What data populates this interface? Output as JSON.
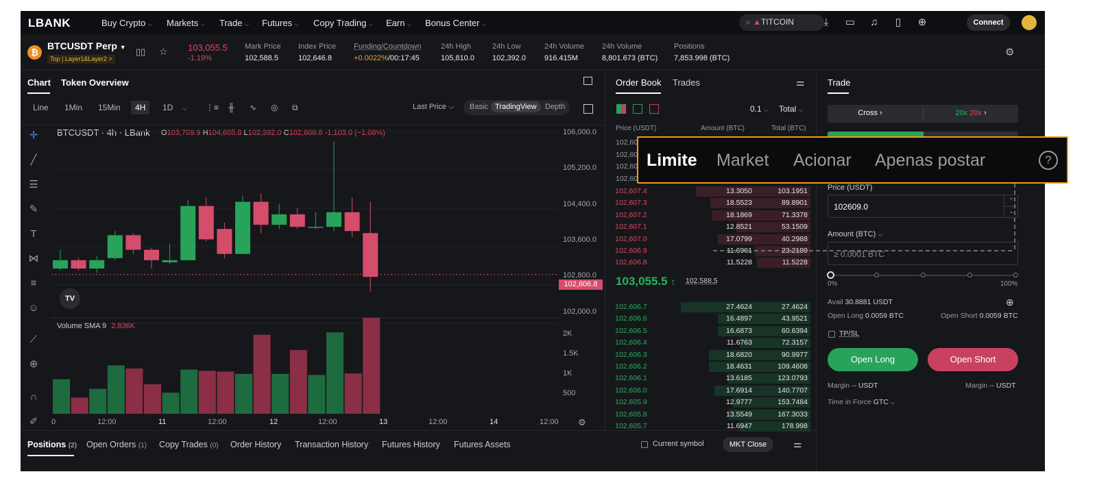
{
  "header": {
    "logo": "LBANK",
    "nav": [
      {
        "label": "Buy Crypto"
      },
      {
        "label": "Markets"
      },
      {
        "label": "Trade"
      },
      {
        "label": "Futures"
      },
      {
        "label": "Copy Trading"
      },
      {
        "label": "Earn"
      },
      {
        "label": "Bonus Center"
      }
    ],
    "search_value": "TITCOIN",
    "connect_label": "Connect"
  },
  "ticker": {
    "symbol": "BTCUSDT Perp",
    "tag": "Top | Layer1&Layer2 >",
    "last_price": "103,055.5",
    "change": "-1.19%",
    "stats": [
      {
        "label": "Mark Price",
        "value": "102,588.5"
      },
      {
        "label": "Index Price",
        "value": "102,646.8"
      },
      {
        "label": "Funding/Countdown",
        "value": "+0.0022%",
        "value2": "/00:17:45"
      },
      {
        "label": "24h High",
        "value": "105,810.0"
      },
      {
        "label": "24h Low",
        "value": "102,392.0"
      },
      {
        "label": "24h Volume",
        "value": "916.415M"
      },
      {
        "label": "24h Volume",
        "value": "8,801.673 (BTC)"
      },
      {
        "label": "Positions",
        "value": "7,853.998 (BTC)"
      }
    ]
  },
  "chart": {
    "tabs": [
      "Chart",
      "Token Overview"
    ],
    "timeframes": [
      "Line",
      "1Min",
      "15Min",
      "4H",
      "1D"
    ],
    "selected_tf": "4H",
    "last_price_label": "Last Price",
    "modes": [
      "Basic",
      "TradingView",
      "Depth"
    ],
    "selected_mode": "TradingView",
    "legend": {
      "title": "BTCUSDT · 4h · LBank",
      "o_label": "O",
      "o": "103,709.9",
      "h_label": "H",
      "h": "104,605.8",
      "l_label": "L",
      "l": "102,392.0",
      "c_label": "C",
      "c": "102,606.8",
      "chg": "-1,103.0 (−1.06%)"
    },
    "y_ticks": [
      "106,000.0",
      "105,200.0",
      "104,400.0",
      "103,600.0",
      "102,800.0",
      "102,000.0"
    ],
    "price_tag": "102,606.8",
    "volume_label": "Volume SMA 9",
    "volume_value": "2.836K",
    "vol_ticks": [
      "2K",
      "1.5K",
      "1K",
      "500"
    ],
    "x_ticks": [
      "0",
      "12:00",
      "11",
      "12:00",
      "12",
      "12:00",
      "13",
      "12:00",
      "14",
      "12:00"
    ],
    "tv_badge": "TV"
  },
  "chart_data": {
    "type": "candlestick",
    "y_range": [
      101600,
      106200
    ],
    "vol_range": [
      0,
      2500
    ],
    "candles": [
      {
        "o": 102750,
        "c": 102950,
        "h": 103200,
        "l": 102700
      },
      {
        "o": 102950,
        "c": 102750,
        "h": 103000,
        "l": 102700
      },
      {
        "o": 102750,
        "c": 102950,
        "h": 103050,
        "l": 102650
      },
      {
        "o": 103000,
        "c": 103550,
        "h": 103650,
        "l": 102950
      },
      {
        "o": 103550,
        "c": 103200,
        "h": 103600,
        "l": 103100
      },
      {
        "o": 103200,
        "c": 102950,
        "h": 103250,
        "l": 102750
      },
      {
        "o": 102900,
        "c": 102950,
        "h": 103350,
        "l": 102850
      },
      {
        "o": 102950,
        "c": 104250,
        "h": 104400,
        "l": 102950
      },
      {
        "o": 104250,
        "c": 103450,
        "h": 104450,
        "l": 103400
      },
      {
        "o": 103700,
        "c": 103100,
        "h": 103850,
        "l": 103000
      },
      {
        "o": 103100,
        "c": 104350,
        "h": 104500,
        "l": 103100
      },
      {
        "o": 104350,
        "c": 103800,
        "h": 104550,
        "l": 103600
      },
      {
        "o": 103800,
        "c": 104050,
        "h": 104300,
        "l": 103700
      },
      {
        "o": 104050,
        "c": 103750,
        "h": 104200,
        "l": 103700
      },
      {
        "o": 103750,
        "c": 103750,
        "h": 104100,
        "l": 103700
      },
      {
        "o": 103750,
        "c": 104100,
        "h": 105800,
        "l": 103650
      },
      {
        "o": 104100,
        "c": 103650,
        "h": 104450,
        "l": 103500
      },
      {
        "o": 103600,
        "c": 102550,
        "h": 104350,
        "l": 102200
      }
    ],
    "volumes": [
      900,
      420,
      650,
      1260,
      1180,
      770,
      550,
      1150,
      1120,
      1100,
      1040,
      2060,
      1040,
      1660,
      1010,
      2120,
      1050,
      2500
    ]
  },
  "orderbook": {
    "tabs": [
      "Order Book",
      "Trades"
    ],
    "precision": "0.1",
    "total_label": "Total",
    "headers": [
      "Price (USDT)",
      "Amount (BTC)",
      "Total (BTC)"
    ],
    "asks_hidden": [
      "102,60",
      "102,60",
      "102,60",
      "102,60"
    ],
    "asks": [
      {
        "p": "102,607.4",
        "a": "13.3050",
        "t": "103.1951",
        "d": 0.62
      },
      {
        "p": "102,607.3",
        "a": "18.5523",
        "t": "89.8901",
        "d": 0.54
      },
      {
        "p": "102,607.2",
        "a": "18.1869",
        "t": "71.3378",
        "d": 0.53
      },
      {
        "p": "102,607.1",
        "a": "12.8521",
        "t": "53.1509",
        "d": 0.4
      },
      {
        "p": "102,607.0",
        "a": "17.0799",
        "t": "40.2988",
        "d": 0.5
      },
      {
        "p": "102,606.9",
        "a": "11.6961",
        "t": "23.2189",
        "d": 0.3
      },
      {
        "p": "102,606.8",
        "a": "11.5228",
        "t": "11.5228",
        "d": 0.29
      }
    ],
    "mid_price": "103,055.5",
    "mid_arrow": "↑",
    "mid_mark": "102,588.5",
    "bids": [
      {
        "p": "102,606.7",
        "a": "27.4624",
        "t": "27.4624",
        "d": 0.7
      },
      {
        "p": "102,606.6",
        "a": "16.4897",
        "t": "43.9521",
        "d": 0.5
      },
      {
        "p": "102,606.5",
        "a": "16.6873",
        "t": "60.6394",
        "d": 0.5
      },
      {
        "p": "102,606.4",
        "a": "11.6763",
        "t": "72.3157",
        "d": 0.38
      },
      {
        "p": "102,606.3",
        "a": "18.6820",
        "t": "90.9977",
        "d": 0.55
      },
      {
        "p": "102,606.2",
        "a": "18.4631",
        "t": "109.4608",
        "d": 0.55
      },
      {
        "p": "102,606.1",
        "a": "13.6185",
        "t": "123.0793",
        "d": 0.45
      },
      {
        "p": "102,606.0",
        "a": "17.6914",
        "t": "140.7707",
        "d": 0.52
      },
      {
        "p": "102,605.9",
        "a": "12.9777",
        "t": "153.7484",
        "d": 0.42
      },
      {
        "p": "102,605.8",
        "a": "13.5549",
        "t": "167.3033",
        "d": 0.44
      },
      {
        "p": "102,605.7",
        "a": "11.6947",
        "t": "178.998",
        "d": 0.38
      }
    ]
  },
  "trade": {
    "title": "Trade",
    "margin_mode": "Cross",
    "leverage": "20x",
    "leverage2": "20x",
    "price_label": "Price (USDT)",
    "price_value": "102609.0",
    "amount_label": "Amount (BTC)",
    "amount_placeholder": "≥ 0.0001 BTC",
    "slider_min": "0%",
    "slider_max": "100%",
    "avail_label": "Avail",
    "avail_value": "30.8881 USDT",
    "open_long_label": "Open Long",
    "open_long_val": "0.0059 BTC",
    "open_short_label": "Open Short",
    "open_short_val": "0.0059 BTC",
    "tpsl_label": "TP/SL",
    "long_btn": "Open Long",
    "short_btn": "Open Short",
    "margin_label": "Margin",
    "margin_value": "-- USDT",
    "tif_label": "Time in Force",
    "tif_value": "GTC"
  },
  "bottom": {
    "tabs": [
      {
        "label": "Positions",
        "count": "(2)"
      },
      {
        "label": "Open Orders",
        "count": "(1)"
      },
      {
        "label": "Copy Trades",
        "count": "(0)"
      },
      {
        "label": "Order History",
        "count": ""
      },
      {
        "label": "Transaction History",
        "count": ""
      },
      {
        "label": "Futures History",
        "count": ""
      },
      {
        "label": "Futures Assets",
        "count": ""
      }
    ],
    "current_symbol": "Current symbol",
    "mkt_close": "MKT Close"
  },
  "overlay": {
    "tabs": [
      "Limite",
      "Market",
      "Acionar",
      "Apenas postar"
    ],
    "active": "Limite",
    "help": "?"
  },
  "colors": {
    "up": "#27a35a",
    "down": "#d44d6b",
    "accent": "#f39c12"
  }
}
